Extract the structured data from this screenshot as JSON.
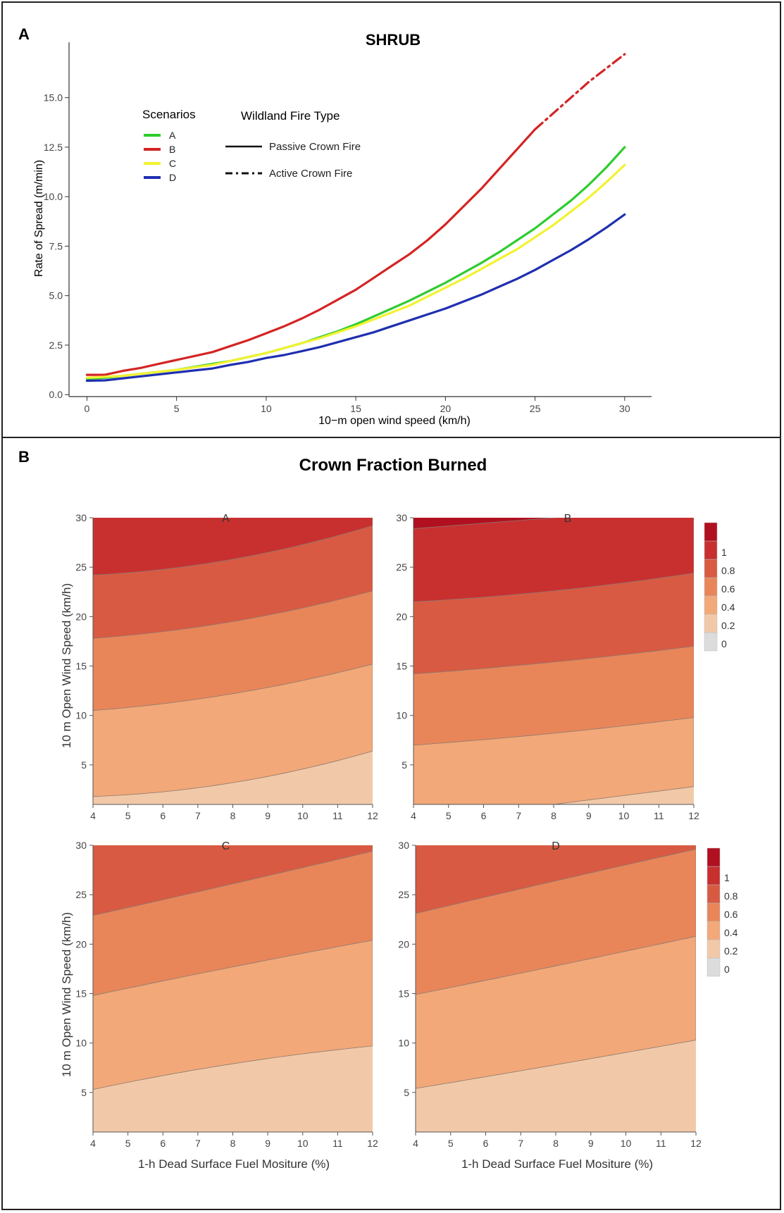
{
  "panel_a": {
    "letter": "A",
    "chart_data": {
      "type": "line",
      "title": "SHRUB",
      "xlabel": "10−m open wind speed (km/h)",
      "ylabel": "Rate of Spread (m/min)",
      "xlim": [
        -1,
        31.5
      ],
      "ylim": [
        -0.1,
        17.8
      ],
      "xticks": [
        0,
        5,
        10,
        15,
        20,
        25,
        30
      ],
      "yticks": [
        0,
        2.5,
        5,
        7.5,
        10,
        12.5,
        15
      ],
      "ytick_labels": [
        "0.0",
        "2.5",
        "5.0",
        "7.5",
        "10.0",
        "12.5",
        "15.0"
      ],
      "grid": false,
      "legend_title": "Scenarios",
      "linetype_title": "Wildland Fire Type",
      "linetypes": [
        {
          "label": "Passive Crown Fire",
          "dash": "solid"
        },
        {
          "label": "Active Crown Fire",
          "dash": "dashdot"
        }
      ],
      "series": [
        {
          "name": "A",
          "color": "#2ecc2e",
          "x": [
            0,
            1,
            2,
            3,
            4,
            5,
            6,
            7,
            8,
            9,
            10,
            11,
            12,
            13,
            14,
            15,
            16,
            17,
            18,
            19,
            20,
            21,
            22,
            23,
            24,
            25,
            26,
            27,
            28,
            29,
            30
          ],
          "y": [
            0.8,
            0.85,
            0.95,
            1.05,
            1.15,
            1.25,
            1.4,
            1.55,
            1.7,
            1.9,
            2.1,
            2.35,
            2.6,
            2.9,
            3.2,
            3.55,
            3.95,
            4.35,
            4.75,
            5.2,
            5.65,
            6.15,
            6.65,
            7.2,
            7.8,
            8.4,
            9.1,
            9.8,
            10.6,
            11.5,
            12.5
          ]
        },
        {
          "name": "B",
          "color": "#d42424",
          "x": [
            0,
            1,
            2,
            3,
            4,
            5,
            6,
            7,
            8,
            9,
            10,
            11,
            12,
            13,
            14,
            15,
            16,
            17,
            18,
            19,
            20,
            21,
            22,
            23,
            24,
            25
          ],
          "y": [
            1.0,
            1.0,
            1.2,
            1.35,
            1.55,
            1.75,
            1.95,
            2.15,
            2.45,
            2.75,
            3.1,
            3.45,
            3.85,
            4.3,
            4.8,
            5.3,
            5.9,
            6.5,
            7.1,
            7.8,
            8.6,
            9.5,
            10.4,
            11.4,
            12.4,
            13.4
          ],
          "linetype": "Passive Crown Fire"
        },
        {
          "name": "B",
          "color": "#d42424",
          "x": [
            25,
            26,
            27,
            28,
            29,
            30
          ],
          "y": [
            13.4,
            14.2,
            15.0,
            15.8,
            16.5,
            17.2
          ],
          "linetype": "Active Crown Fire"
        },
        {
          "name": "C",
          "color": "#f2f232",
          "x": [
            0,
            1,
            2,
            3,
            4,
            5,
            6,
            7,
            8,
            9,
            10,
            11,
            12,
            13,
            14,
            15,
            16,
            17,
            18,
            19,
            20,
            21,
            22,
            23,
            24,
            25,
            26,
            27,
            28,
            29,
            30
          ],
          "y": [
            0.85,
            0.9,
            0.95,
            1.05,
            1.15,
            1.25,
            1.38,
            1.5,
            1.7,
            1.9,
            2.1,
            2.35,
            2.6,
            2.85,
            3.15,
            3.45,
            3.8,
            4.15,
            4.5,
            4.95,
            5.4,
            5.85,
            6.35,
            6.85,
            7.35,
            7.95,
            8.55,
            9.25,
            9.95,
            10.75,
            11.6
          ]
        },
        {
          "name": "D",
          "color": "#1f2fb0",
          "x": [
            0,
            1,
            2,
            3,
            4,
            5,
            6,
            7,
            8,
            9,
            10,
            11,
            12,
            13,
            14,
            15,
            16,
            17,
            18,
            19,
            20,
            21,
            22,
            23,
            24,
            25,
            26,
            27,
            28,
            29,
            30
          ],
          "y": [
            0.7,
            0.72,
            0.82,
            0.92,
            1.02,
            1.12,
            1.22,
            1.32,
            1.5,
            1.65,
            1.85,
            2.0,
            2.2,
            2.4,
            2.65,
            2.9,
            3.15,
            3.45,
            3.75,
            4.05,
            4.35,
            4.7,
            5.05,
            5.45,
            5.85,
            6.3,
            6.8,
            7.3,
            7.85,
            8.45,
            9.1
          ]
        }
      ]
    }
  },
  "panel_b": {
    "letter": "B",
    "title": "Crown Fraction Burned",
    "ylabel": "10 m Open Wind Speed (km/h)",
    "xlabel": "1-h Dead Surface Fuel Mositure (%)",
    "xticks": [
      4,
      5,
      6,
      7,
      8,
      9,
      10,
      11,
      12
    ],
    "yticks": [
      5,
      10,
      15,
      20,
      25,
      30
    ],
    "xlim": [
      4,
      12
    ],
    "ylim": [
      1,
      30
    ],
    "colorbar": {
      "labels": [
        "0",
        "0.2",
        "0.4",
        "0.6",
        "0.8",
        "1"
      ],
      "colors": [
        "#dcdcdc",
        "#f2c9a8",
        "#f2a878",
        "#e8865a",
        "#d85a42",
        "#c83030",
        "#b01020"
      ]
    },
    "chart_data": [
      {
        "type": "heatmap",
        "title": "A",
        "contours": [
          {
            "level": 0.2,
            "y_at_4": 1.8,
            "y_at_8": 3.2,
            "y_at_12": 6.4
          },
          {
            "level": 0.4,
            "y_at_4": 10.5,
            "y_at_8": 12.2,
            "y_at_12": 15.2
          },
          {
            "level": 0.6,
            "y_at_4": 17.8,
            "y_at_8": 19.5,
            "y_at_12": 22.6
          },
          {
            "level": 0.8,
            "y_at_4": 24.2,
            "y_at_8": 25.8,
            "y_at_12": 29.2
          }
        ]
      },
      {
        "type": "heatmap",
        "title": "B",
        "contours": [
          {
            "level": 0.2,
            "y_at_4": null,
            "y_at_8": 1.0,
            "y_at_12": 2.8
          },
          {
            "level": 0.4,
            "y_at_4": 7.0,
            "y_at_8": 8.2,
            "y_at_12": 9.8
          },
          {
            "level": 0.6,
            "y_at_4": 14.2,
            "y_at_8": 15.4,
            "y_at_12": 17.0
          },
          {
            "level": 0.8,
            "y_at_4": 21.5,
            "y_at_8": 22.6,
            "y_at_12": 24.4
          },
          {
            "level": 1.0,
            "y_at_4": 28.9,
            "y_at_8": 30.0,
            "y_at_12": null
          }
        ]
      },
      {
        "type": "heatmap",
        "title": "C",
        "contours": [
          {
            "level": 0.2,
            "y_at_4": 5.3,
            "y_at_8": 7.9,
            "y_at_12": 9.7
          },
          {
            "level": 0.4,
            "y_at_4": 14.8,
            "y_at_8": 17.7,
            "y_at_12": 20.4
          },
          {
            "level": 0.6,
            "y_at_4": 22.9,
            "y_at_8": 26.1,
            "y_at_12": 29.4
          }
        ]
      },
      {
        "type": "heatmap",
        "title": "D",
        "contours": [
          {
            "level": 0.2,
            "y_at_4": 5.4,
            "y_at_8": 7.8,
            "y_at_12": 10.3
          },
          {
            "level": 0.4,
            "y_at_4": 14.9,
            "y_at_8": 17.8,
            "y_at_12": 20.8
          },
          {
            "level": 0.6,
            "y_at_4": 23.1,
            "y_at_8": 26.4,
            "y_at_12": 29.6
          }
        ]
      }
    ]
  }
}
